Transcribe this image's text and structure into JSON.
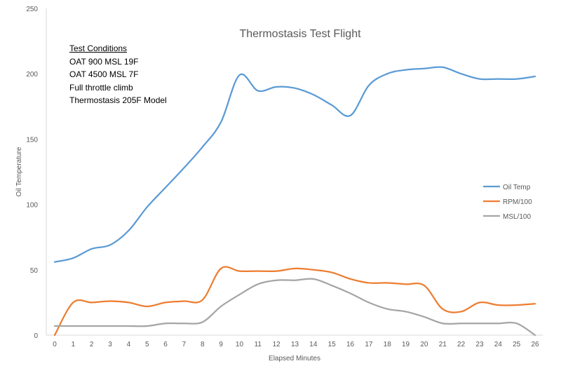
{
  "chart_data": {
    "type": "line",
    "title": "Thermostasis Test Flight",
    "xlabel": "Elapsed Minutes",
    "ylabel": "Oil Temperature",
    "ylim": [
      0,
      250
    ],
    "yticks": [
      0,
      50,
      100,
      150,
      200,
      250
    ],
    "xlim": [
      0,
      26
    ],
    "x": [
      0,
      1,
      2,
      3,
      4,
      5,
      6,
      7,
      8,
      9,
      10,
      11,
      12,
      13,
      14,
      15,
      16,
      17,
      18,
      19,
      20,
      21,
      22,
      23,
      24,
      25,
      26
    ],
    "grid": false,
    "legend_position": "right",
    "series": [
      {
        "name": "Oil Temp",
        "color": "#5B9BD5",
        "values": [
          56,
          59,
          66,
          69,
          80,
          98,
          113,
          128,
          144,
          163,
          199,
          187,
          190,
          189,
          184,
          176,
          168,
          191,
          200,
          203,
          204,
          205,
          200,
          196,
          196,
          196,
          198
        ]
      },
      {
        "name": "RPM/100",
        "color": "#ED7D31",
        "values": [
          0,
          25,
          25,
          26,
          25,
          22,
          25,
          26,
          27,
          51,
          49,
          49,
          49,
          51,
          50,
          48,
          43,
          40,
          40,
          39,
          38,
          20,
          18,
          25,
          23,
          23,
          24
        ]
      },
      {
        "name": "MSL/100",
        "color": "#A5A5A5",
        "values": [
          7,
          7,
          7,
          7,
          7,
          7,
          9,
          9,
          10,
          22,
          31,
          39,
          42,
          42,
          43,
          38,
          32,
          25,
          20,
          18,
          14,
          9,
          9,
          9,
          9,
          9,
          0
        ]
      }
    ]
  },
  "notes": {
    "title": "Test Conditions",
    "lines": [
      "OAT 900 MSL 19F",
      "OAT 4500  MSL 7F",
      "Full throttle climb",
      "Thermostasis 205F Model"
    ]
  }
}
